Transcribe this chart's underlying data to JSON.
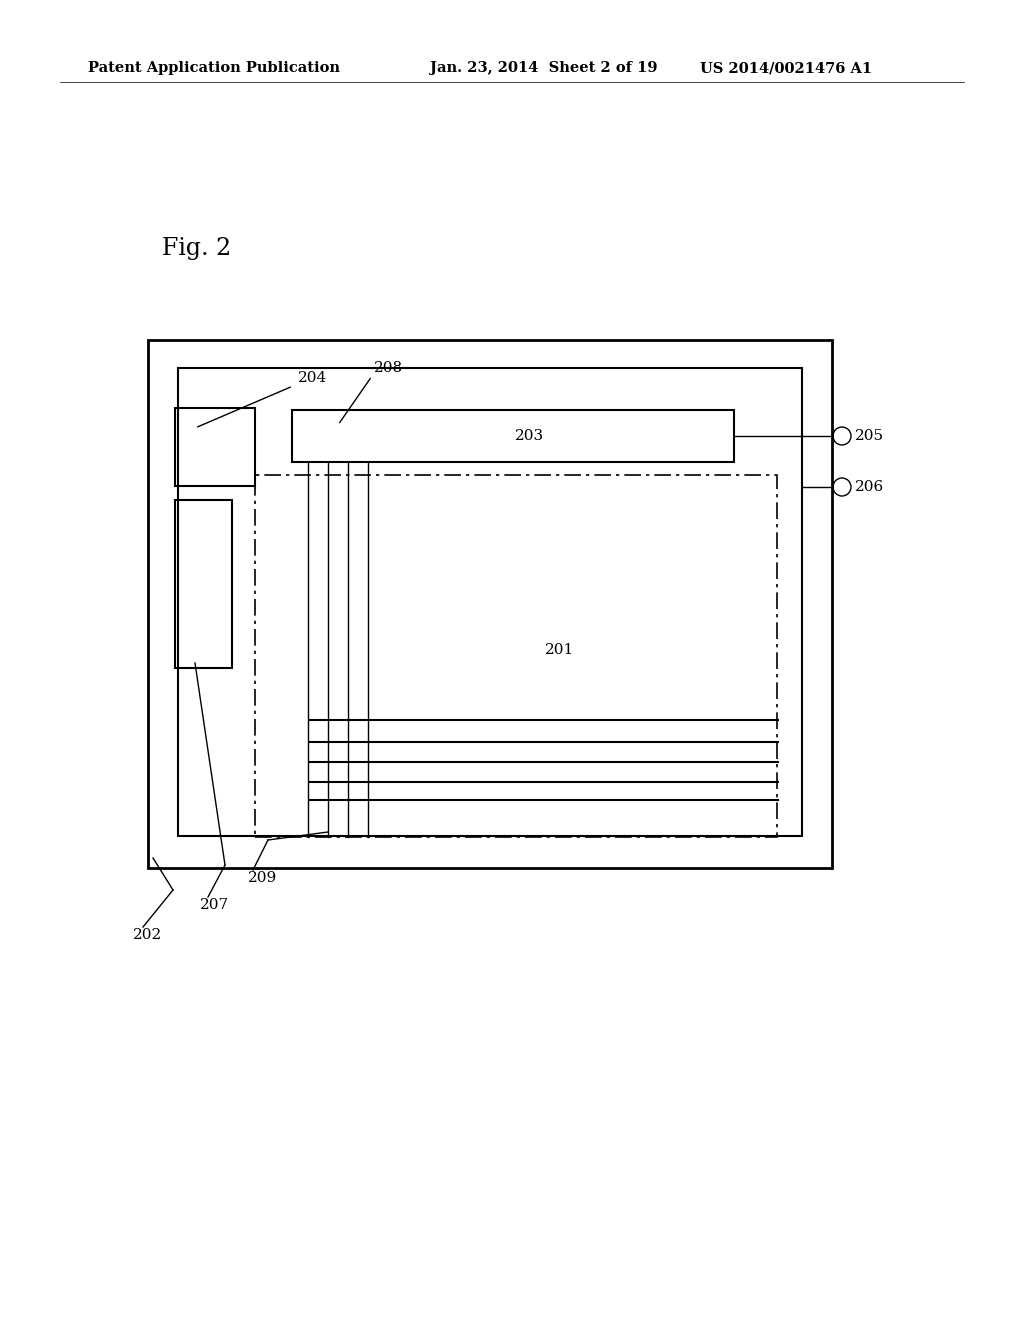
{
  "bg_color": "#ffffff",
  "header_text": "Patent Application Publication",
  "header_date": "Jan. 23, 2014  Sheet 2 of 19",
  "header_patent": "US 2014/0021476 A1",
  "fig_label": "Fig. 2",
  "line_color": "#000000",
  "label_fontsize": 11,
  "header_fontsize": 10.5,
  "fig_fontsize": 17
}
